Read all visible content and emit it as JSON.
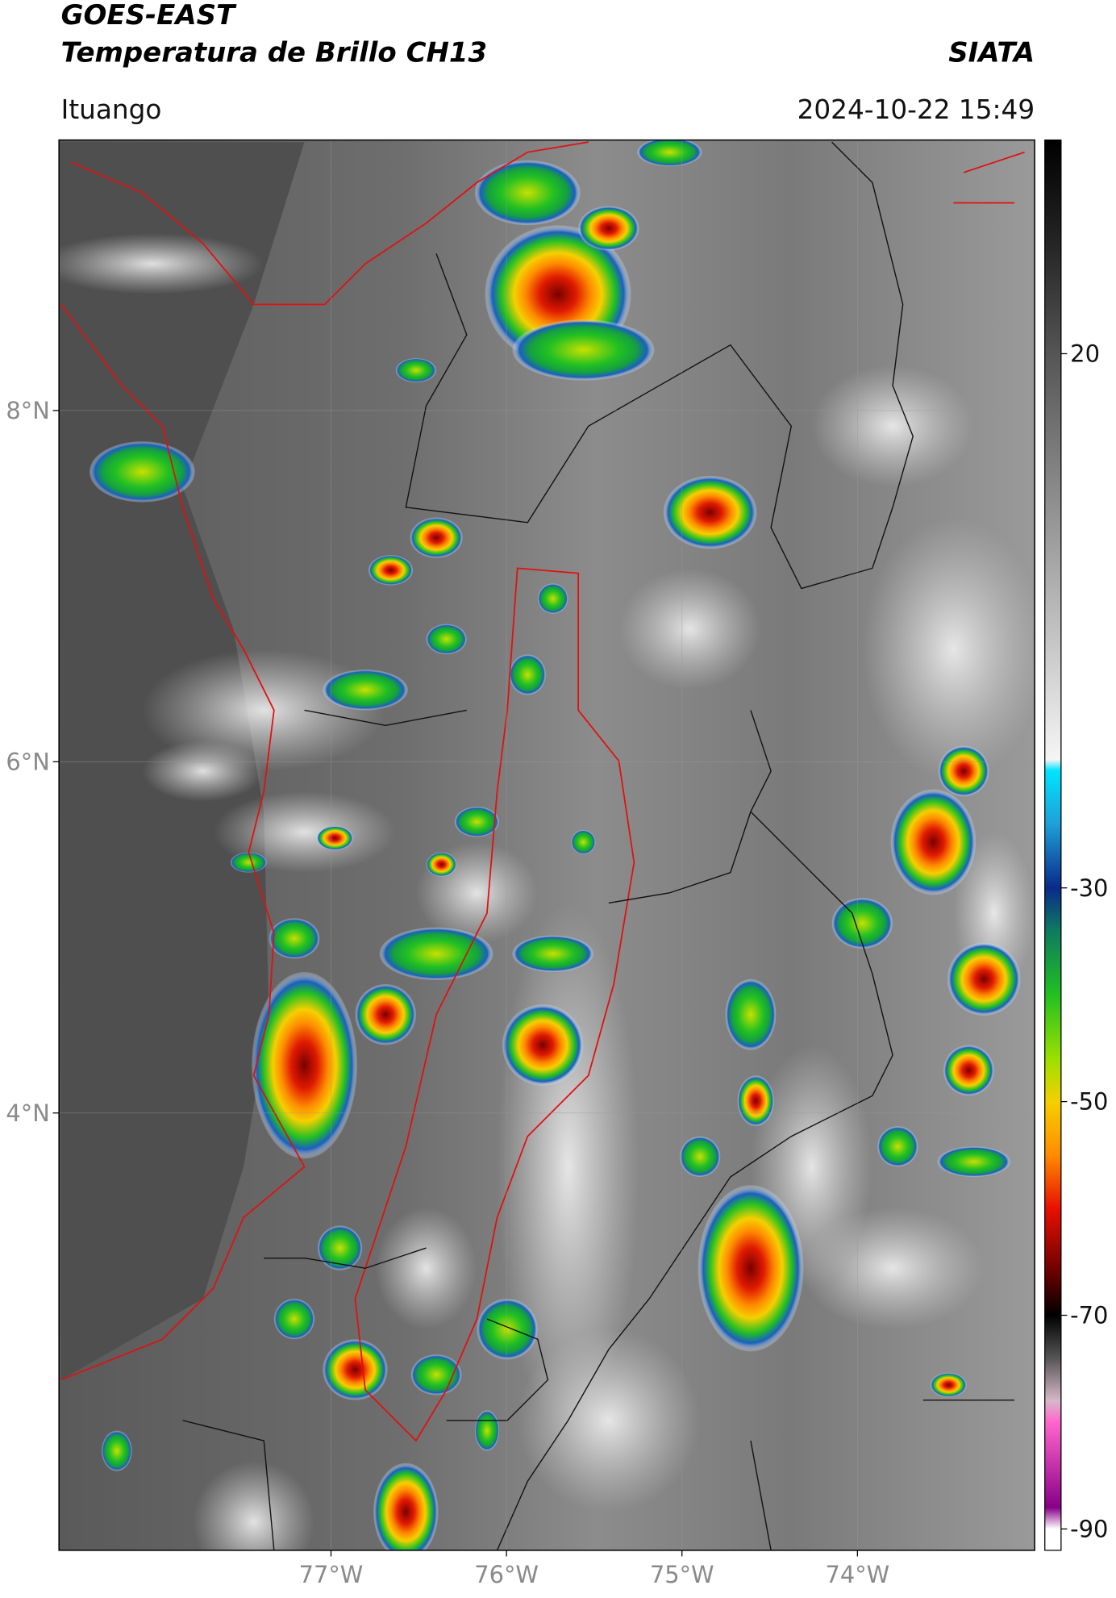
{
  "header": {
    "title_line1": "GOES-EAST",
    "title_line2": "Temperatura de Brillo CH13",
    "source": "SIATA",
    "location": "Ituango",
    "timestamp": "2024-10-22 15:49"
  },
  "map": {
    "xlim": [
      -78.55,
      -72.99
    ],
    "ylim": [
      1.51,
      9.54
    ],
    "xticks": [
      {
        "value": -77,
        "label": "77°W"
      },
      {
        "value": -76,
        "label": "76°W"
      },
      {
        "value": -75,
        "label": "75°W"
      },
      {
        "value": -74,
        "label": "74°W"
      }
    ],
    "yticks": [
      {
        "value": 8,
        "label": "8°N"
      },
      {
        "value": 6,
        "label": "6°N"
      },
      {
        "value": 4,
        "label": "4°N"
      }
    ],
    "grid": true
  },
  "colorbar": {
    "clim": [
      -92,
      40
    ],
    "ticks": [
      20,
      -30,
      -50,
      -70,
      -90
    ],
    "colormap": [
      {
        "value": 40,
        "color": "#000000"
      },
      {
        "value": 30,
        "color": "#262626"
      },
      {
        "value": 20,
        "color": "#555555"
      },
      {
        "value": 0,
        "color": "#a8a8a8"
      },
      {
        "value": -18,
        "color": "#f5f5f5"
      },
      {
        "value": -19,
        "color": "#00e5ff"
      },
      {
        "value": -24,
        "color": "#1ea0d8"
      },
      {
        "value": -30,
        "color": "#0a2a8a"
      },
      {
        "value": -34,
        "color": "#0f7a60"
      },
      {
        "value": -40,
        "color": "#22c022"
      },
      {
        "value": -46,
        "color": "#9be000"
      },
      {
        "value": -50,
        "color": "#f5d000"
      },
      {
        "value": -55,
        "color": "#ff8c00"
      },
      {
        "value": -60,
        "color": "#e81000"
      },
      {
        "value": -66,
        "color": "#6a0000"
      },
      {
        "value": -70,
        "color": "#000000"
      },
      {
        "value": -74,
        "color": "#555555"
      },
      {
        "value": -78,
        "color": "#d8b8c8"
      },
      {
        "value": -80,
        "color": "#ff66cc"
      },
      {
        "value": -88,
        "color": "#880088"
      },
      {
        "value": -90,
        "color": "#ffffff"
      },
      {
        "value": -92,
        "color": "#ffffff"
      }
    ]
  }
}
